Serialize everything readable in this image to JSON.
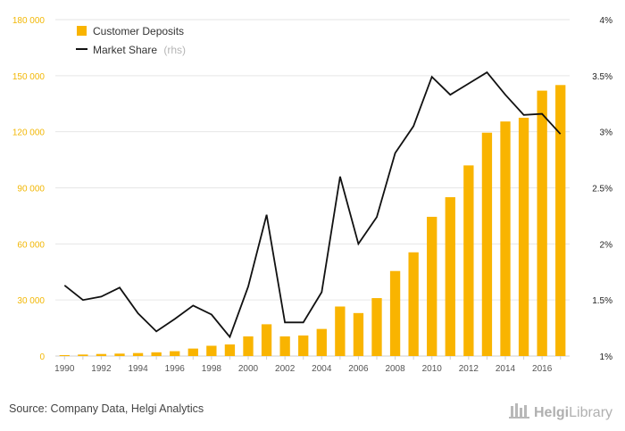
{
  "chart_data": {
    "type": "bar",
    "x": [
      1990,
      1991,
      1992,
      1993,
      1994,
      1995,
      1996,
      1997,
      1998,
      1999,
      2000,
      2001,
      2002,
      2003,
      2004,
      2005,
      2006,
      2007,
      2008,
      2009,
      2010,
      2011,
      2012,
      2013,
      2014,
      2015,
      2016,
      2017
    ],
    "x_tick_labels": [
      "1990",
      "1992",
      "1994",
      "1996",
      "1998",
      "2000",
      "2002",
      "2004",
      "2006",
      "2008",
      "2010",
      "2012",
      "2014",
      "2016"
    ],
    "series": [
      {
        "name": "Customer Deposits",
        "type": "bar",
        "axis": "left",
        "values": [
          500,
          800,
          1100,
          1300,
          1600,
          2000,
          2600,
          4000,
          5500,
          6200,
          10500,
          17000,
          10500,
          11000,
          14500,
          26500,
          23000,
          31000,
          45500,
          55500,
          74500,
          85000,
          102000,
          119500,
          125500,
          127500,
          142000,
          145000
        ]
      },
      {
        "name": "Market Share",
        "type": "line",
        "axis": "right",
        "legend_suffix": "(rhs)",
        "values": [
          1.63,
          1.5,
          1.53,
          1.61,
          1.38,
          1.22,
          1.33,
          1.45,
          1.37,
          1.17,
          1.62,
          2.26,
          1.3,
          1.3,
          1.57,
          2.6,
          2.0,
          2.24,
          2.81,
          3.05,
          3.49,
          3.33,
          3.43,
          3.53,
          3.33,
          3.15,
          3.16,
          2.98
        ]
      }
    ],
    "y_left": {
      "min": 0,
      "max": 180000,
      "ticks": [
        "0",
        "30 000",
        "60 000",
        "90 000",
        "120 000",
        "150 000",
        "180 000"
      ]
    },
    "y_right": {
      "min": 1,
      "max": 4,
      "ticks": [
        "1%",
        "1.5%",
        "2%",
        "2.5%",
        "3%",
        "3.5%",
        "4%"
      ]
    },
    "grid": "horizontal",
    "legend_position": "top-left"
  },
  "footer": {
    "source": "Source: Company Data, Helgi Analytics",
    "brand_bold": "Helgi",
    "brand_rest": "Library"
  },
  "colors": {
    "bar": "#f9b400",
    "line": "#111111",
    "grid": "#e6e6e6",
    "left_axis_text": "#f2b705"
  }
}
